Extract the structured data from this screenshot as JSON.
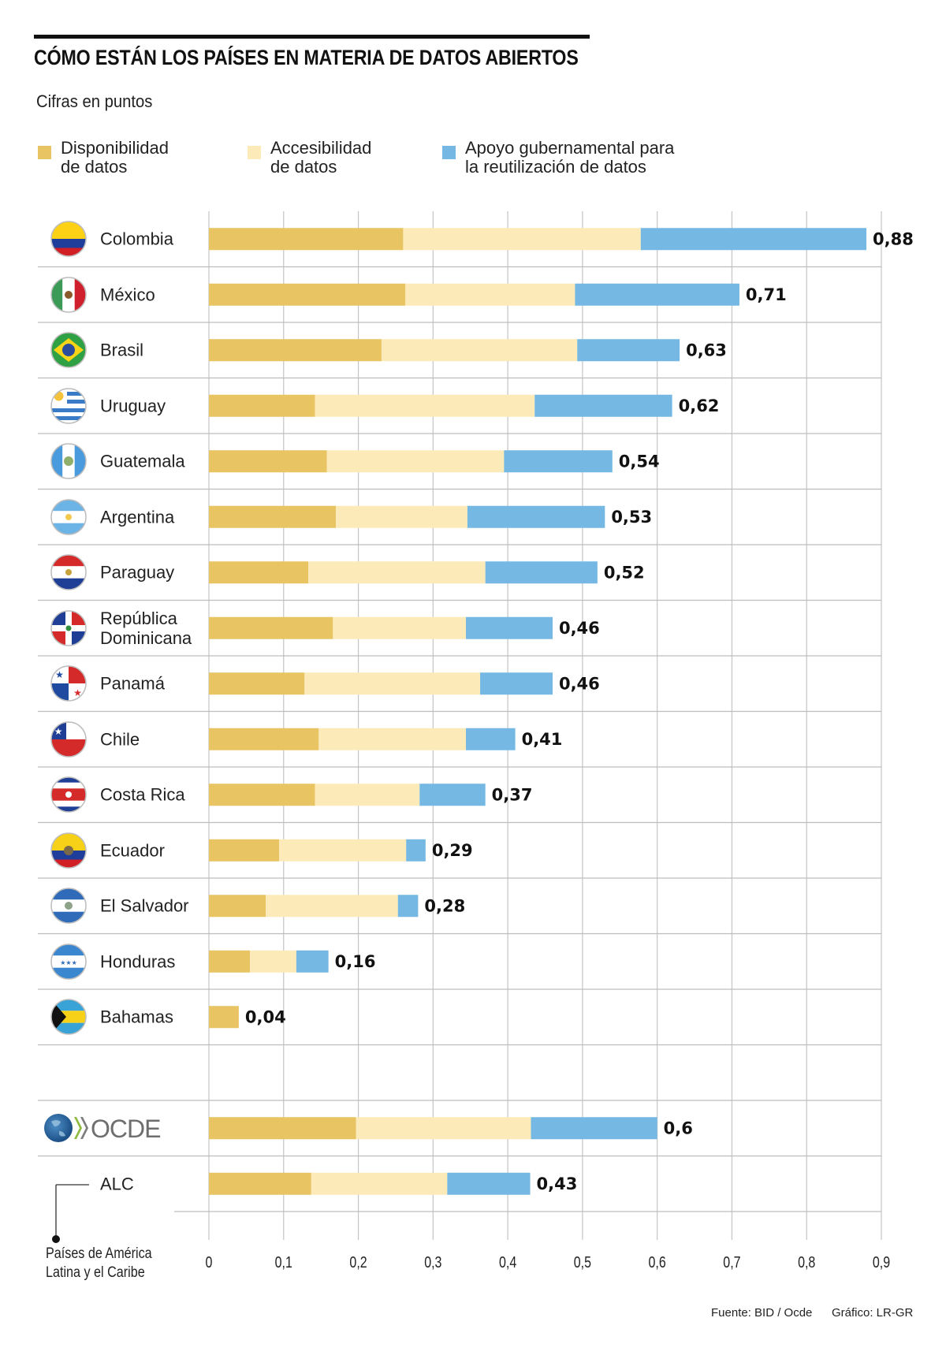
{
  "header": {
    "title": "CÓMO ESTÁN LOS PAÍSES EN MATERIA DE DATOS ABIERTOS",
    "subtitle": "Cifras en puntos"
  },
  "legend": [
    {
      "label": "Disponibilidad\nde datos",
      "color": "#E8C462"
    },
    {
      "label": "Accesibilidad\nde datos",
      "color": "#FCEAB8"
    },
    {
      "label": "Apoyo gubernamental para\nla reutilización de datos",
      "color": "#74B8E3"
    }
  ],
  "annotations": {
    "alc_note": "Países de América\nLatina y el Caribe"
  },
  "footer": {
    "source": "Fuente: BID / Ocde",
    "credit": "Gráfico: LR-GR"
  },
  "chart_data": {
    "type": "bar",
    "orientation": "horizontal",
    "stacked": true,
    "title": "CÓMO ESTÁN LOS PAÍSES EN MATERIA DE DATOS ABIERTOS",
    "subtitle": "Cifras en puntos",
    "xlabel": "",
    "ylabel": "",
    "xlim": [
      0,
      0.9
    ],
    "xticks": [
      0,
      0.1,
      0.2,
      0.3,
      0.4,
      0.5,
      0.6,
      0.7,
      0.8,
      0.9
    ],
    "xtick_labels": [
      "0",
      "0,1",
      "0,2",
      "0,3",
      "0,4",
      "0,5",
      "0,6",
      "0,7",
      "0,8",
      "0,9"
    ],
    "grid": true,
    "legend_position": "top",
    "categories": [
      {
        "label": "Colombia",
        "flag": "colombia-flag"
      },
      {
        "label": "México",
        "flag": "mexico-flag"
      },
      {
        "label": "Brasil",
        "flag": "brazil-flag"
      },
      {
        "label": "Uruguay",
        "flag": "uruguay-flag"
      },
      {
        "label": "Guatemala",
        "flag": "guatemala-flag"
      },
      {
        "label": "Argentina",
        "flag": "argentina-flag"
      },
      {
        "label": "Paraguay",
        "flag": "paraguay-flag"
      },
      {
        "label": "República\nDominicana",
        "flag": "dominican-republic-flag"
      },
      {
        "label": "Panamá",
        "flag": "panama-flag"
      },
      {
        "label": "Chile",
        "flag": "chile-flag"
      },
      {
        "label": "Costa Rica",
        "flag": "costa-rica-flag"
      },
      {
        "label": "Ecuador",
        "flag": "ecuador-flag"
      },
      {
        "label": "El Salvador",
        "flag": "el-salvador-flag"
      },
      {
        "label": "Honduras",
        "flag": "honduras-flag"
      },
      {
        "label": "Bahamas",
        "flag": "bahamas-flag"
      },
      {
        "label": "",
        "flag": ""
      },
      {
        "label": "OCDE",
        "flag": "ocde-logo"
      },
      {
        "label": "ALC",
        "flag": ""
      }
    ],
    "series": [
      {
        "name": "Disponibilidad de datos",
        "color": "#E8C462",
        "values": [
          0.26,
          0.263,
          0.231,
          0.142,
          0.158,
          0.17,
          0.133,
          0.166,
          0.128,
          0.147,
          0.142,
          0.094,
          0.076,
          0.055,
          0.04,
          null,
          0.197,
          0.137
        ]
      },
      {
        "name": "Accesibilidad de datos",
        "color": "#FCEAB8",
        "values": [
          0.318,
          0.227,
          0.262,
          0.294,
          0.237,
          0.176,
          0.237,
          0.178,
          0.235,
          0.197,
          0.14,
          0.17,
          0.177,
          0.062,
          0,
          null,
          0.234,
          0.182
        ]
      },
      {
        "name": "Apoyo gubernamental para la reutilización de datos",
        "color": "#74B8E3",
        "values": [
          0.302,
          0.22,
          0.137,
          0.184,
          0.145,
          0.184,
          0.15,
          0.116,
          0.097,
          0.066,
          0.088,
          0.026,
          0.027,
          0.043,
          0,
          null,
          0.169,
          0.111
        ]
      }
    ],
    "totals": [
      0.88,
      0.71,
      0.63,
      0.62,
      0.54,
      0.53,
      0.52,
      0.46,
      0.46,
      0.41,
      0.37,
      0.29,
      0.28,
      0.16,
      0.04,
      null,
      0.6,
      0.43
    ],
    "total_labels": [
      "0,88",
      "0,71",
      "0,63",
      "0,62",
      "0,54",
      "0,53",
      "0,52",
      "0,46",
      "0,46",
      "0,41",
      "0,37",
      "0,29",
      "0,28",
      "0,16",
      "0,04",
      "",
      "0,6",
      "0,43"
    ]
  }
}
